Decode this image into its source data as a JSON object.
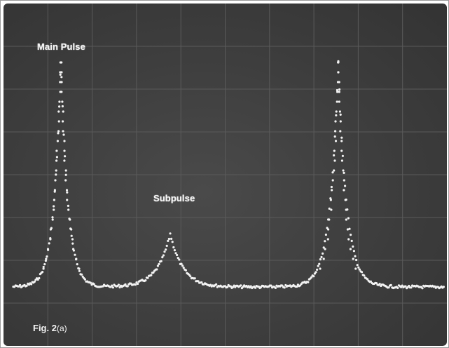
{
  "figure": {
    "caption_main": "Fig. 2",
    "caption_sub": "(a)"
  },
  "annotations": {
    "main_pulse": "Main Pulse",
    "subpulse": "Subpulse"
  },
  "colors": {
    "screen": "#3d3d3d",
    "grid": "#5a5a5a",
    "trace": "#f2f2f2",
    "text": "#f4f4f4"
  }
}
